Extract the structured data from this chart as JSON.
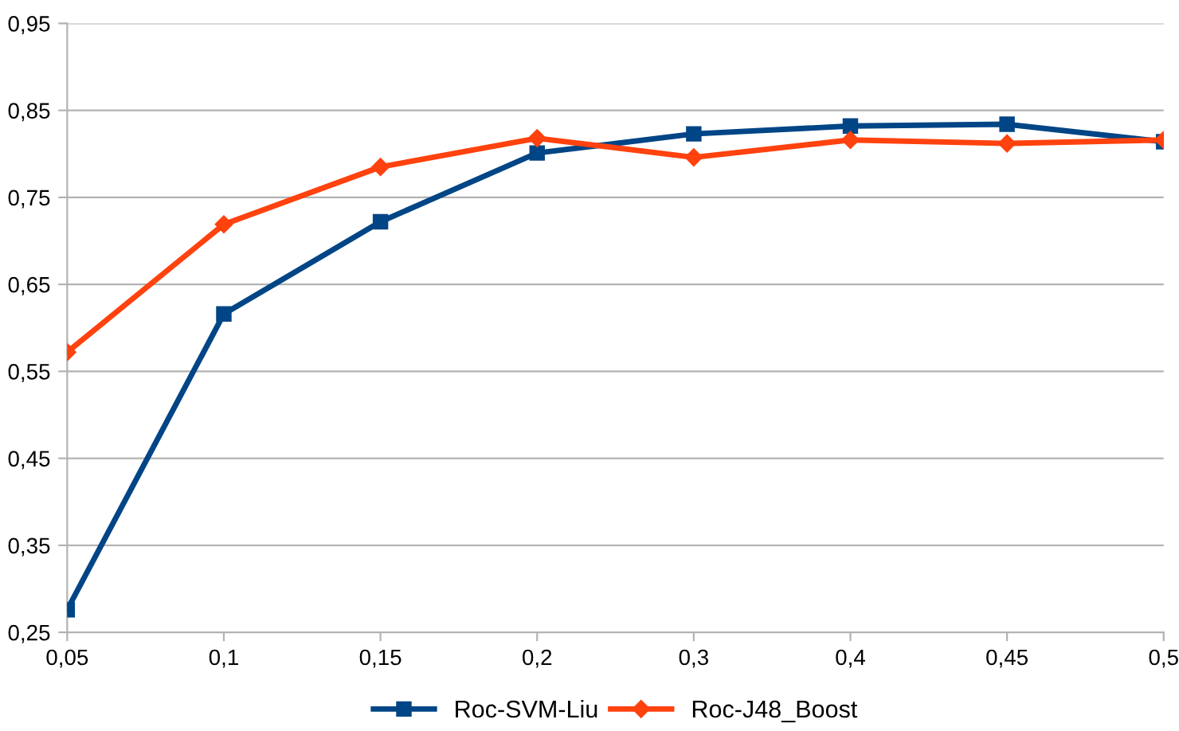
{
  "chart_data": {
    "type": "line",
    "categories": [
      "0,05",
      "0,1",
      "0,15",
      "0,2",
      "0,3",
      "0,4",
      "0,45",
      "0,5"
    ],
    "series": [
      {
        "name": "Roc-SVM-Liu",
        "color": "#004586",
        "marker": "square",
        "values": [
          0.276,
          0.616,
          0.722,
          0.801,
          0.823,
          0.832,
          0.834,
          0.814
        ]
      },
      {
        "name": "Roc-J48_Boost",
        "color": "#ff420e",
        "marker": "diamond",
        "values": [
          0.572,
          0.719,
          0.785,
          0.818,
          0.796,
          0.816,
          0.812,
          0.816
        ]
      }
    ],
    "ylim": [
      0.25,
      0.95
    ],
    "yticks": [
      {
        "value": 0.25,
        "label": "0,25"
      },
      {
        "value": 0.35,
        "label": "0,35"
      },
      {
        "value": 0.45,
        "label": "0,45"
      },
      {
        "value": 0.55,
        "label": "0,55"
      },
      {
        "value": 0.65,
        "label": "0,65"
      },
      {
        "value": 0.75,
        "label": "0,75"
      },
      {
        "value": 0.85,
        "label": "0,85"
      },
      {
        "value": 0.95,
        "label": "0,95"
      }
    ],
    "grid": "y",
    "legend": "bottom",
    "line_style": "solid"
  }
}
